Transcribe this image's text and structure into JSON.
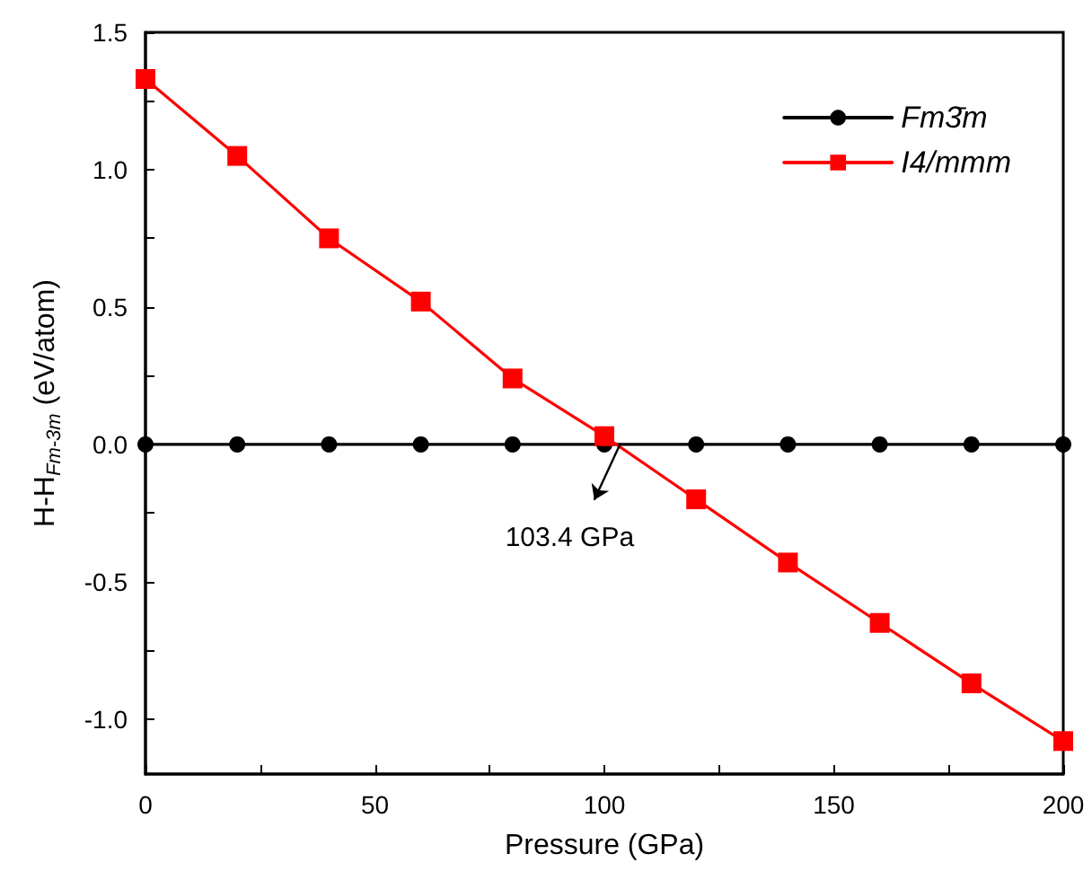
{
  "chart_data": {
    "type": "line",
    "xlabel": "Pressure (GPa)",
    "ylabel": "H-H$_{Fm-3m}$ (eV/atom)",
    "x": [
      0,
      20,
      40,
      60,
      80,
      100,
      120,
      140,
      160,
      180,
      200
    ],
    "series": [
      {
        "name": "Fm3̄m",
        "color": "#000000",
        "marker": "circle",
        "values": [
          0,
          0,
          0,
          0,
          0,
          0,
          0,
          0,
          0,
          0,
          0
        ]
      },
      {
        "name": "I4/mmm",
        "color": "#ff0000",
        "marker": "square",
        "values": [
          1.33,
          1.05,
          0.75,
          0.52,
          0.24,
          0.03,
          -0.2,
          -0.43,
          -0.65,
          -0.87,
          -1.08
        ]
      }
    ],
    "xlim": [
      0,
      200
    ],
    "xticks": [
      0,
      {
        "value": 25,
        "label": null
      },
      50,
      {
        "value": 75,
        "label": null
      },
      100,
      {
        "value": 125,
        "label": null
      },
      150,
      {
        "value": 175,
        "label": null
      },
      200
    ],
    "ylim": [
      -1.2,
      1.5
    ],
    "yticks": [
      {
        "value": -1,
        "label": "-1.0"
      },
      {
        "value": -0.75,
        "label": null
      },
      {
        "value": -0.5,
        "label": "-0.5"
      },
      {
        "value": -0.25,
        "label": null
      },
      {
        "value": 0,
        "label": "0.0"
      },
      {
        "value": 0.25,
        "label": null
      },
      {
        "value": 0.5,
        "label": "0.5"
      },
      {
        "value": 0.75,
        "label": null
      },
      {
        "value": 1,
        "label": "1.0"
      },
      {
        "value": 1.25,
        "label": null
      },
      {
        "value": 1.5,
        "label": "1.5"
      }
    ],
    "annotations": [
      {
        "text": "103.4 GPa",
        "x": 103.4,
        "y": 0
      }
    ],
    "legend": "top right",
    "grid": false,
    "line_style": "solid"
  }
}
